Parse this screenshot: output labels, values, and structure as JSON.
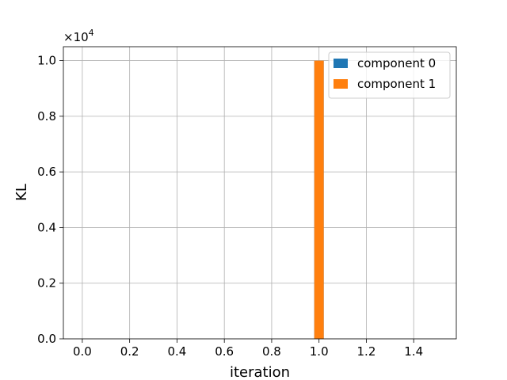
{
  "chart_data": {
    "type": "bar",
    "title": "",
    "xlabel": "iteration",
    "ylabel": "KL",
    "y_multiplier": "×10",
    "y_multiplier_exp": "4",
    "xlim": [
      -0.08,
      1.58
    ],
    "ylim": [
      0,
      1.05
    ],
    "x_ticks": [
      0.0,
      0.2,
      0.4,
      0.6,
      0.8,
      1.0,
      1.2,
      1.4
    ],
    "x_tick_labels": [
      "0.0",
      "0.2",
      "0.4",
      "0.6",
      "0.8",
      "1.0",
      "1.2",
      "1.4"
    ],
    "y_ticks": [
      0.0,
      0.2,
      0.4,
      0.6,
      0.8,
      1.0
    ],
    "y_tick_labels": [
      "0.0",
      "0.2",
      "0.4",
      "0.6",
      "0.8",
      "1.0"
    ],
    "grid": true,
    "legend_position": "top-right",
    "bar_width": 0.04,
    "series": [
      {
        "name": "component 0",
        "color": "#1f77b4",
        "x": [
          1.0
        ],
        "values": [
          1.0
        ]
      },
      {
        "name": "component 1",
        "color": "#ff7f0e",
        "x": [
          1.0
        ],
        "values": [
          1.0
        ]
      }
    ]
  }
}
